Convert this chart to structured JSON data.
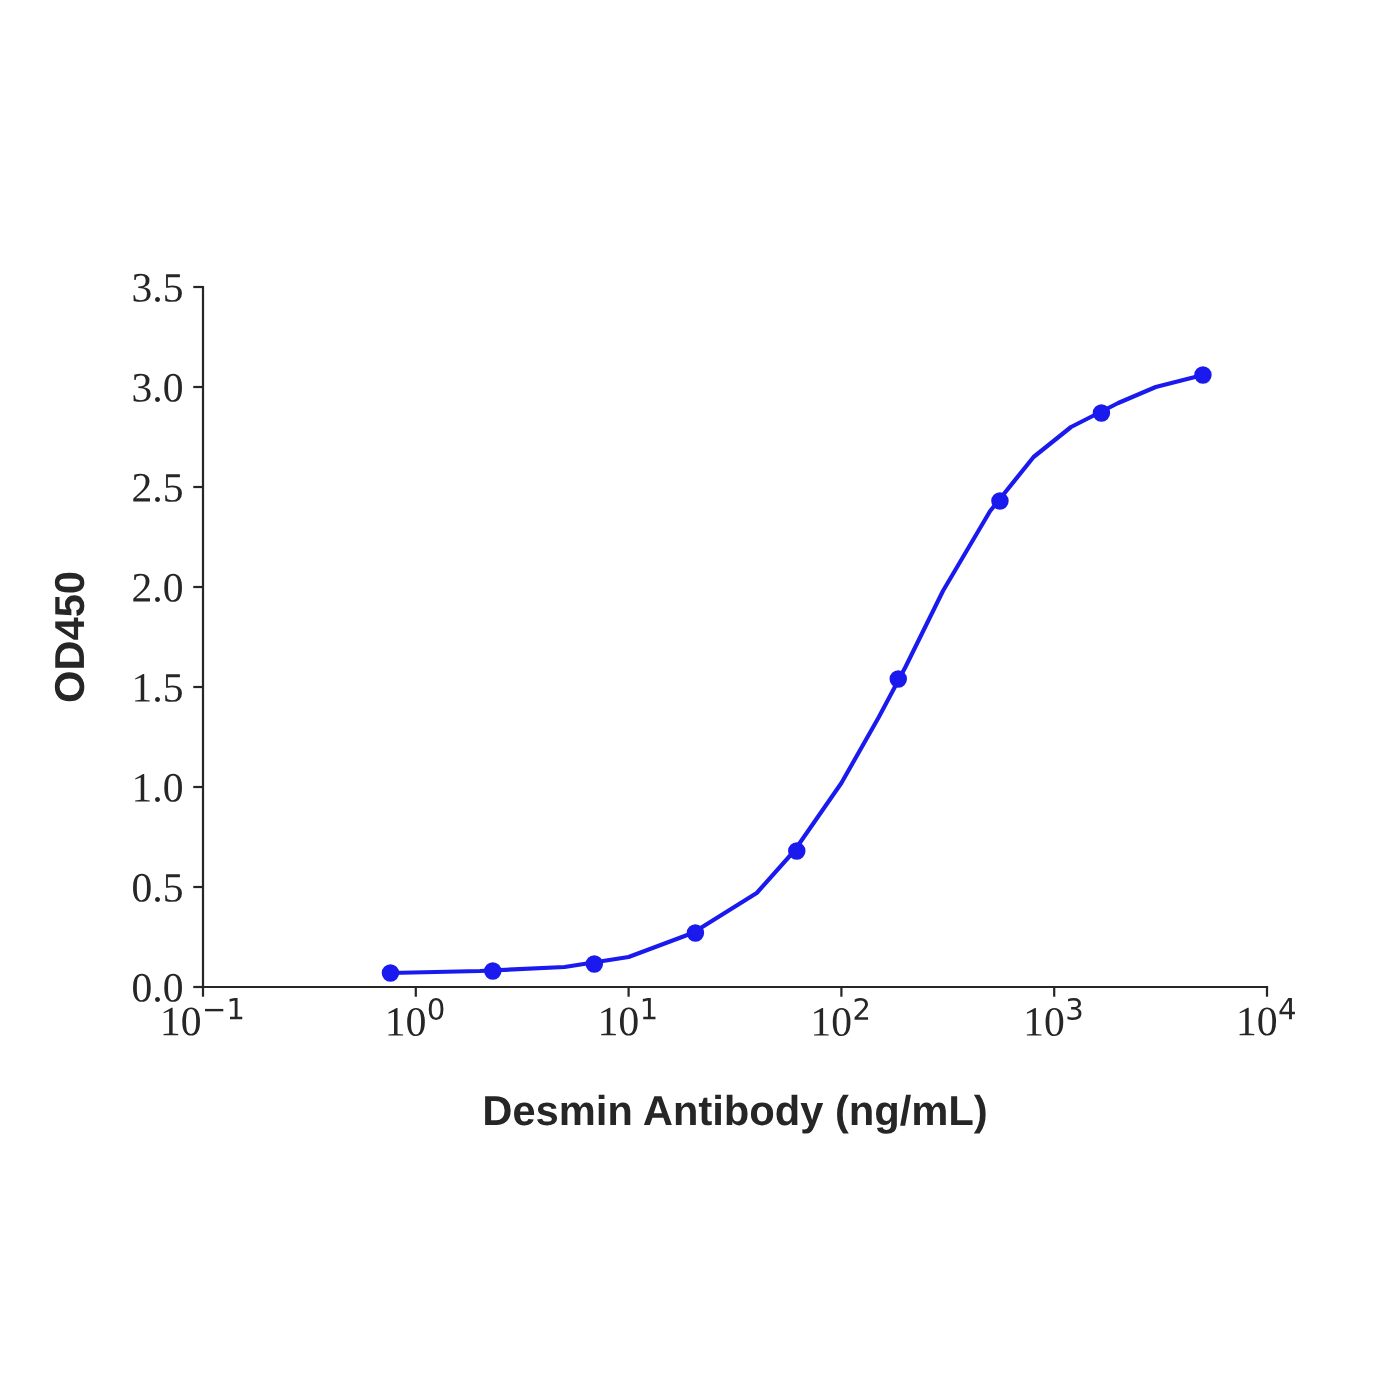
{
  "chart_data": {
    "type": "scatter",
    "xlabel": "Desmin Antibody (ng/mL)",
    "ylabel": "OD450",
    "log": "x",
    "grid": false,
    "legend": false,
    "xlim": [
      0.1,
      10000
    ],
    "xticks": [
      {
        "value": 0.1,
        "label": "10$^{−1}$"
      },
      {
        "value": 1,
        "label": "10$^{0}$"
      },
      {
        "value": 10,
        "label": "10$^{1}$"
      },
      {
        "value": 100,
        "label": "10$^{2}$"
      },
      {
        "value": 1000,
        "label": "10$^{3}$"
      },
      {
        "value": 10000,
        "label": "10$^{4}$"
      }
    ],
    "ylim": [
      0,
      3.5
    ],
    "yticks": [
      {
        "value": 0,
        "label": "0.0"
      },
      {
        "value": 0.5,
        "label": "0.5"
      },
      {
        "value": 1,
        "label": "1.0"
      },
      {
        "value": 1.5,
        "label": "1.5"
      },
      {
        "value": 2,
        "label": "2.0"
      },
      {
        "value": 2.5,
        "label": "2.5"
      },
      {
        "value": 3,
        "label": "3.0"
      },
      {
        "value": 3.5,
        "label": "3.5"
      }
    ],
    "series": [
      {
        "color": "#1a1aee",
        "marker": "circle",
        "x": [
          0.76,
          2.3,
          6.9,
          20.6,
          61.7,
          185,
          556,
          1667,
          5000
        ],
        "values": [
          0.07,
          0.08,
          0.115,
          0.27,
          0.68,
          1.54,
          2.43,
          2.87,
          3.06
        ]
      },
      {
        "type": "line",
        "color": "#1a1aee",
        "marker": "none",
        "line_style": "solid",
        "x": [
          0.76,
          2,
          5,
          10,
          20,
          40,
          60,
          100,
          150,
          200,
          300,
          500,
          800,
          1200,
          2000,
          3000,
          5000
        ],
        "values": [
          0.07,
          0.08,
          0.1,
          0.15,
          0.27,
          0.47,
          0.68,
          1.02,
          1.35,
          1.6,
          1.98,
          2.38,
          2.65,
          2.8,
          2.92,
          3.0,
          3.06
        ]
      }
    ]
  }
}
